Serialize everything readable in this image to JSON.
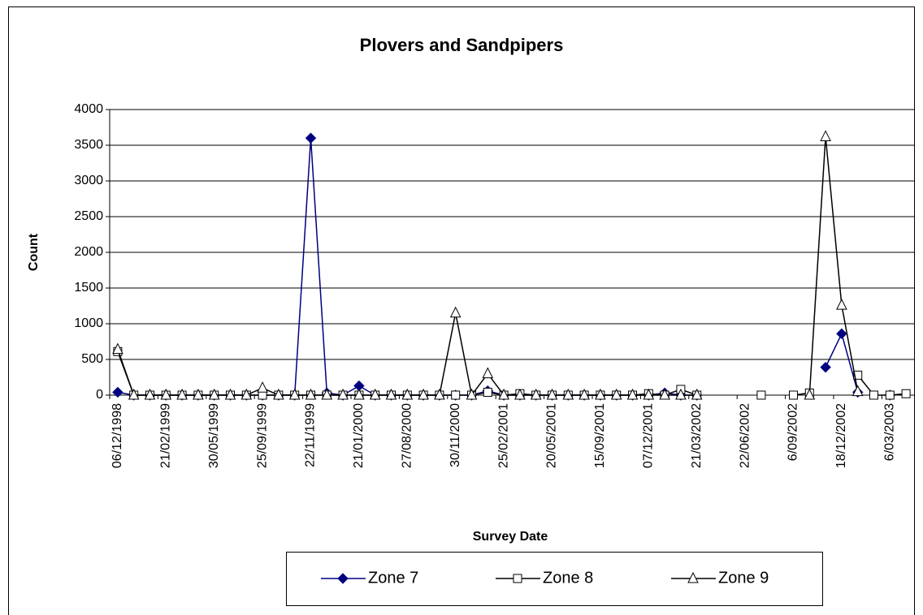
{
  "chart_data": {
    "type": "line",
    "title": "Plovers and Sandpipers",
    "x_label": "Survey Date",
    "y_label": "Count",
    "categories": [
      "06/12/1998",
      null,
      null,
      "21/02/1999",
      null,
      null,
      "30/05/1999",
      null,
      null,
      "25/09/1999",
      null,
      null,
      "22/11/1999",
      null,
      null,
      "21/01/2000",
      null,
      null,
      "27/08/2000",
      null,
      null,
      "30/11/2000",
      null,
      null,
      "25/02/2001",
      null,
      null,
      "20/05/2001",
      null,
      null,
      "15/09/2001",
      null,
      null,
      "07/12/2001",
      null,
      null,
      "21/03/2002",
      null,
      null,
      "22/06/2002",
      null,
      null,
      "6/09/2002",
      null,
      null,
      "18/12/2002",
      null,
      null,
      "6/03/2003",
      null
    ],
    "series": [
      {
        "name": "Zone 7",
        "color": "#000080",
        "marker": "diamond",
        "values": [
          40,
          0,
          0,
          0,
          0,
          0,
          0,
          0,
          0,
          0,
          0,
          0,
          3600,
          30,
          0,
          130,
          0,
          0,
          0,
          0,
          0,
          0,
          0,
          60,
          0,
          0,
          0,
          0,
          0,
          0,
          0,
          0,
          0,
          0,
          30,
          0,
          0,
          null,
          null,
          null,
          null,
          null,
          null,
          null,
          390,
          860,
          40,
          null,
          0,
          null
        ]
      },
      {
        "name": "Zone 8",
        "color": "#000000",
        "marker": "square",
        "values": [
          610,
          0,
          0,
          0,
          0,
          0,
          0,
          0,
          0,
          0,
          0,
          0,
          0,
          0,
          0,
          0,
          0,
          0,
          0,
          0,
          0,
          0,
          0,
          40,
          0,
          20,
          0,
          0,
          0,
          0,
          0,
          0,
          0,
          20,
          0,
          80,
          0,
          null,
          null,
          null,
          0,
          null,
          0,
          30,
          null,
          null,
          280,
          0,
          0,
          20
        ]
      },
      {
        "name": "Zone 9",
        "color": "#000000",
        "marker": "triangle",
        "values": [
          640,
          0,
          0,
          0,
          0,
          0,
          0,
          0,
          0,
          100,
          0,
          0,
          0,
          0,
          0,
          0,
          0,
          0,
          0,
          0,
          0,
          1150,
          0,
          300,
          0,
          0,
          0,
          0,
          0,
          0,
          0,
          0,
          0,
          0,
          0,
          0,
          0,
          null,
          null,
          null,
          null,
          null,
          null,
          0,
          3620,
          1260,
          50,
          null,
          null,
          null
        ]
      }
    ],
    "ylim": [
      0,
      4000
    ],
    "yticks": [
      0,
      500,
      1000,
      1500,
      2000,
      2500,
      3000,
      3500,
      4000
    ],
    "grid": true,
    "legend": "bottom"
  }
}
